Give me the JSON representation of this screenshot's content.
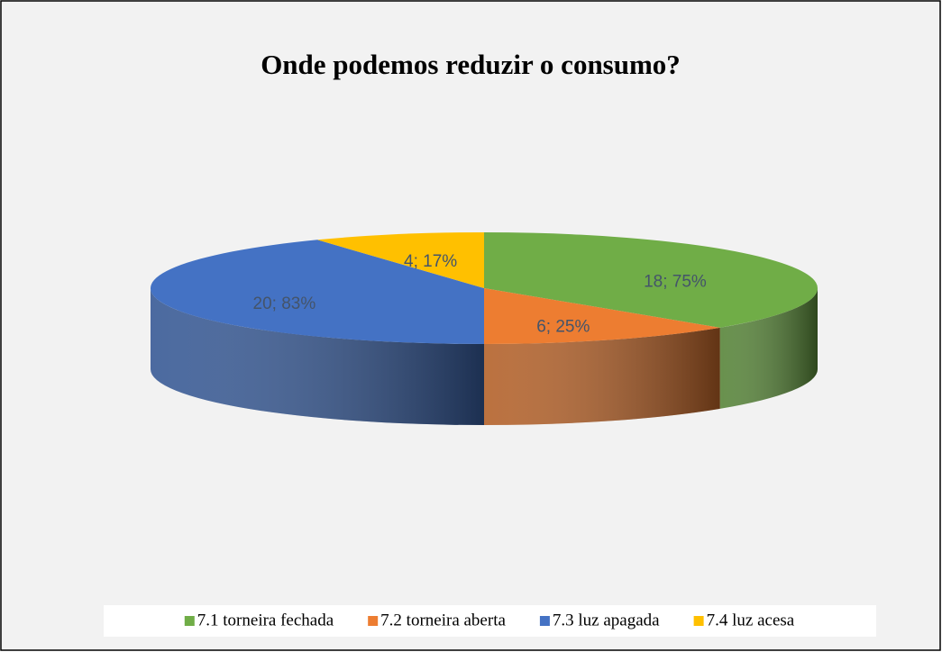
{
  "chart_data": {
    "type": "pie3d",
    "title": "Onde podemos reduzir o consumo?",
    "categories": [
      "7.1 torneira fechada",
      "7.2 torneira aberta",
      "7.3 luz apagada",
      "7.4 luz acesa"
    ],
    "values": [
      18,
      6,
      20,
      4
    ],
    "value_labels": [
      "18; 75%",
      "6; 25%",
      "20; 83%",
      "4; 17%"
    ],
    "colors": [
      "#70ad47",
      "#ed7d31",
      "#4472c4",
      "#ffc000"
    ],
    "legend": "bottom"
  }
}
